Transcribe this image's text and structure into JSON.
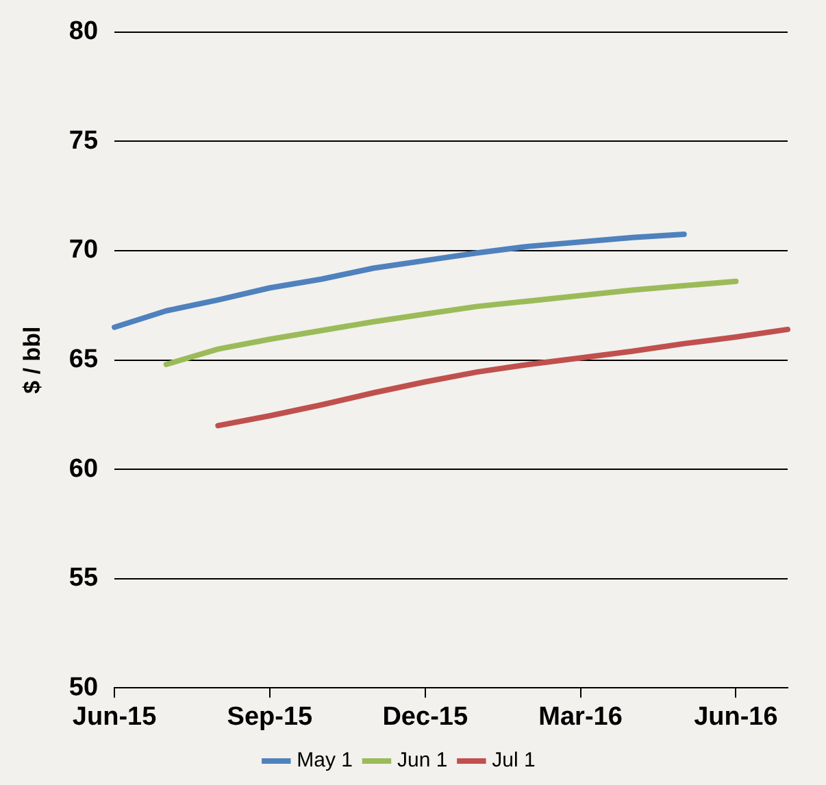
{
  "chart_data": {
    "type": "line",
    "ylabel": "$ / bbl",
    "categories": [
      "Jun-15",
      null,
      null,
      "Sep-15",
      null,
      null,
      "Dec-15",
      null,
      null,
      "Mar-16",
      null,
      null,
      "Jun-16",
      null
    ],
    "series": [
      {
        "name": "May 1",
        "color": "#4f81bd",
        "values": [
          66.5,
          67.25,
          67.75,
          68.3,
          68.7,
          69.2,
          69.55,
          69.9,
          70.2,
          70.4,
          70.6,
          70.75,
          null,
          null
        ]
      },
      {
        "name": "Jun 1",
        "color": "#9bbb59",
        "values": [
          null,
          64.8,
          65.5,
          65.95,
          66.35,
          66.75,
          67.1,
          67.45,
          67.7,
          67.95,
          68.2,
          68.4,
          68.6,
          null
        ]
      },
      {
        "name": "Jul 1",
        "color": "#c0504d",
        "values": [
          null,
          null,
          62.0,
          62.45,
          62.95,
          63.5,
          64.0,
          64.45,
          64.8,
          65.1,
          65.4,
          65.75,
          66.05,
          66.4
        ]
      }
    ],
    "ylim": [
      50,
      80
    ],
    "yticks": [
      50,
      55,
      60,
      65,
      70,
      75,
      80
    ],
    "grid": "y",
    "legend": "bottom",
    "marker": "none",
    "line_style": "solid"
  }
}
